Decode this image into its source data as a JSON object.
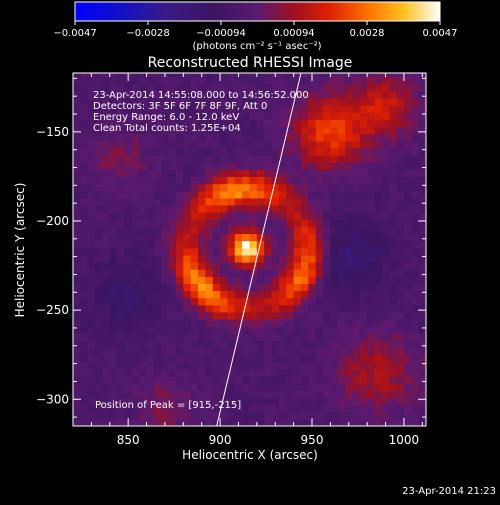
{
  "chart_data": {
    "type": "heatmap",
    "title": "Reconstructed RHESSI Image",
    "xlabel": "Heliocentric X (arcsec)",
    "ylabel": "Heliocentric Y (arcsec)",
    "xlim": [
      820,
      1012
    ],
    "ylim": [
      -315,
      -117
    ],
    "xticks": [
      850,
      900,
      950,
      1000
    ],
    "yticks": [
      -300,
      -250,
      -200,
      -150
    ],
    "xtick_labels": [
      "850",
      "900",
      "950",
      "1000"
    ],
    "ytick_labels": [
      "−300",
      "−250",
      "−200",
      "−150"
    ],
    "colorbar": {
      "ticks": [
        "−0.0047",
        "−0.0028",
        "−0.00094",
        "0.00094",
        "0.0028",
        "0.0047"
      ],
      "range": [
        -0.0047,
        0.0047
      ],
      "unit_label": "(photons cm⁻² s⁻¹ asec⁻²)"
    },
    "annotations": [
      "23-Apr-2014 14:55:08.000 to 14:56:52.000",
      "Detectors: 3F 5F 6F 7F 8F 9F, Att 0",
      "Energy Range: 6.0 - 12.0 keV",
      "Clean     Total counts: 1.25E+04"
    ],
    "peak_label": "Position of Peak = [915,-215]",
    "peak": [
      915,
      -215
    ],
    "limb_line": [
      [
        897,
        -320
      ],
      [
        944,
        -117
      ]
    ],
    "timestamp": "23-Apr-2014 21:23"
  }
}
